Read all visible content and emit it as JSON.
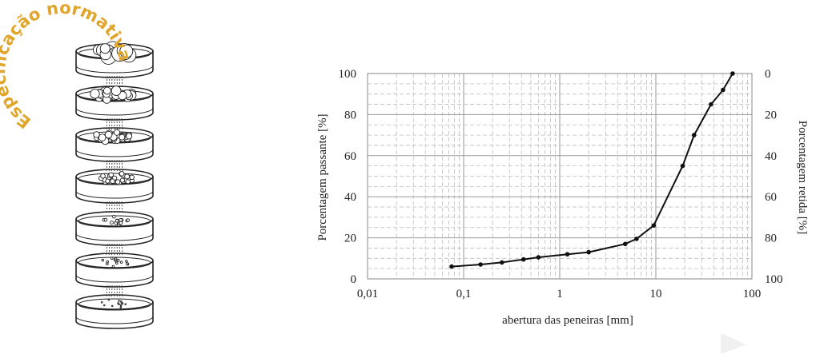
{
  "stamp": {
    "text": "Especificação normativa",
    "color": "#e0a52a"
  },
  "colors": {
    "line": "#111111",
    "grid_major": "#9a9a9a",
    "grid_minor": "#bdbdbd",
    "sieve": "#222222"
  },
  "chart_data": {
    "type": "line",
    "title": "",
    "xlabel": "abertura das peneiras [mm]",
    "ylabel": "Porcentagem passante [%]",
    "ylabel_right": "Porcentagem retida [%]",
    "x_scale": "log",
    "xlim": [
      0.01,
      100
    ],
    "ylim": [
      0,
      100
    ],
    "grid": true,
    "x_ticks": [
      0.01,
      0.1,
      1,
      10,
      100
    ],
    "x_tick_labels": [
      "0,01",
      "0,1",
      "1",
      "10",
      "100"
    ],
    "y_ticks": [
      0,
      20,
      40,
      60,
      80,
      100
    ],
    "y_tick_labels": [
      "0",
      "20",
      "40",
      "60",
      "80",
      "100"
    ],
    "y_right_tick_labels": [
      "100",
      "80",
      "60",
      "40",
      "20",
      "0"
    ],
    "series": [
      {
        "x": [
          0.075,
          0.15,
          0.25,
          0.42,
          0.6,
          1.2,
          2.0,
          4.8,
          6.3,
          9.5,
          19,
          25,
          37.5,
          50,
          63
        ],
        "y": [
          6,
          7,
          8,
          9.5,
          10.5,
          12,
          13,
          17,
          19.5,
          26,
          55,
          70,
          85,
          92,
          100
        ]
      }
    ]
  }
}
